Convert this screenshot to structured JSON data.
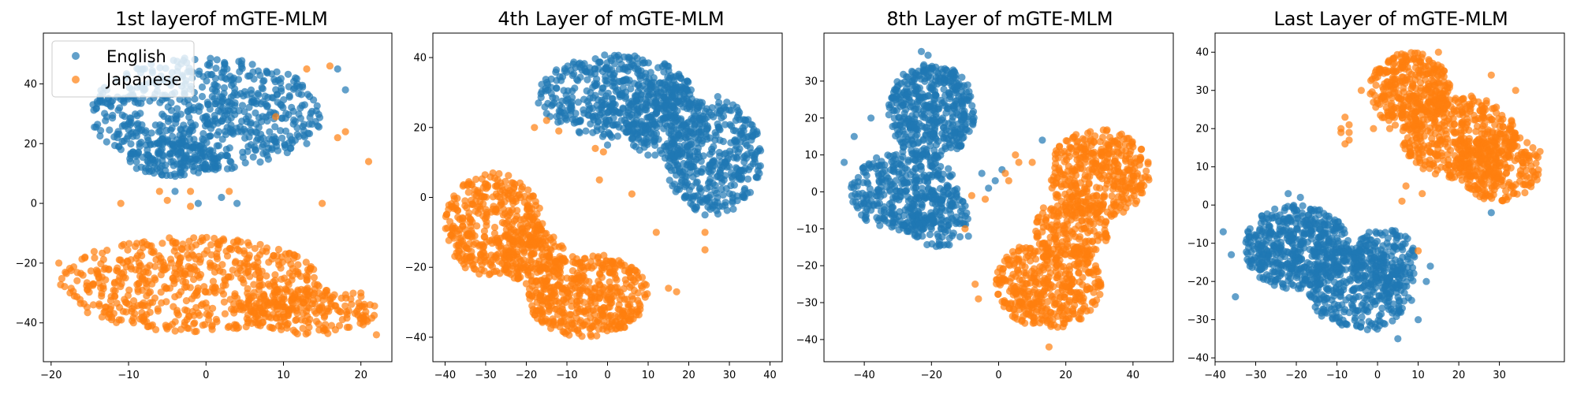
{
  "colors": {
    "English": "#1f77b4",
    "Japanese": "#ff7f0e"
  },
  "chart_data": [
    {
      "type": "scatter",
      "title": "1st layerof mGTE-MLM",
      "xlabel": "",
      "ylabel": "",
      "xlim": [
        -21,
        24
      ],
      "ylim": [
        -53,
        57
      ],
      "xticks": [
        -20,
        -10,
        0,
        10,
        20
      ],
      "yticks": [
        -40,
        -20,
        0,
        20,
        40
      ],
      "legend": {
        "placement": "upper-left",
        "entries": [
          "English",
          "Japanese"
        ]
      },
      "series": [
        {
          "name": "English",
          "clusters": [
            {
              "cx": 0,
              "cy": 30,
              "rx": 15,
              "ry": 19,
              "n": 650
            },
            {
              "cx": -4,
              "cy": 15,
              "rx": 6,
              "ry": 6,
              "n": 120
            }
          ],
          "points": [
            [
              9,
              30
            ],
            [
              17,
              45
            ],
            [
              18,
              38
            ],
            [
              13,
              20
            ],
            [
              -1,
              0
            ],
            [
              2,
              2
            ],
            [
              -4,
              4
            ],
            [
              4,
              0
            ]
          ]
        },
        {
          "name": "Japanese",
          "clusters": [
            {
              "cx": -2,
              "cy": -27,
              "rx": 17,
              "ry": 16,
              "n": 600
            },
            {
              "cx": 13,
              "cy": -36,
              "rx": 9,
              "ry": 8,
              "n": 200
            }
          ],
          "points": [
            [
              3,
              4
            ],
            [
              -6,
              4
            ],
            [
              -2,
              4
            ],
            [
              13,
              45
            ],
            [
              16,
              46
            ],
            [
              18,
              24
            ],
            [
              17,
              22
            ],
            [
              21,
              14
            ],
            [
              9,
              29
            ],
            [
              15,
              0
            ],
            [
              -11,
              0
            ],
            [
              -17,
              -31
            ],
            [
              22,
              -44
            ],
            [
              -19,
              -20
            ],
            [
              20,
              -30
            ],
            [
              -5,
              1
            ],
            [
              -2,
              -1
            ]
          ]
        }
      ]
    },
    {
      "type": "scatter",
      "title": "4th Layer of mGTE-MLM",
      "xlabel": "",
      "ylabel": "",
      "xlim": [
        -43,
        43
      ],
      "ylim": [
        -47,
        47
      ],
      "xticks": [
        -40,
        -30,
        -20,
        -10,
        0,
        10,
        20,
        30,
        40
      ],
      "yticks": [
        -40,
        -20,
        0,
        20,
        40
      ],
      "series": [
        {
          "name": "English",
          "clusters": [
            {
              "cx": 2,
              "cy": 29,
              "rx": 19,
              "ry": 12,
              "n": 450
            },
            {
              "cx": 26,
              "cy": 12,
              "rx": 12,
              "ry": 17,
              "n": 400
            },
            {
              "cx": 14,
              "cy": 22,
              "rx": 10,
              "ry": 11,
              "n": 200
            }
          ],
          "points": [
            [
              -15,
              24
            ],
            [
              -17,
              27
            ],
            [
              0,
              15
            ],
            [
              24,
              -5
            ],
            [
              25,
              0
            ]
          ]
        },
        {
          "name": "Japanese",
          "clusters": [
            {
              "cx": -28,
              "cy": -8,
              "rx": 12,
              "ry": 15,
              "n": 400
            },
            {
              "cx": -5,
              "cy": -28,
              "rx": 15,
              "ry": 12,
              "n": 450
            },
            {
              "cx": -18,
              "cy": -17,
              "rx": 8,
              "ry": 8,
              "n": 150
            }
          ],
          "points": [
            [
              -18,
              20
            ],
            [
              -12,
              19
            ],
            [
              -15,
              22
            ],
            [
              -3,
              14
            ],
            [
              -1,
              13
            ],
            [
              6,
              1
            ],
            [
              24,
              -15
            ],
            [
              24,
              -10
            ],
            [
              12,
              -10
            ],
            [
              -2,
              5
            ],
            [
              17,
              -27
            ],
            [
              15,
              -26
            ]
          ]
        }
      ]
    },
    {
      "type": "scatter",
      "title": "8th Layer of mGTE-MLM",
      "xlabel": "",
      "ylabel": "",
      "xlim": [
        -52,
        52
      ],
      "ylim": [
        -46,
        43
      ],
      "xticks": [
        -40,
        -20,
        0,
        20,
        40
      ],
      "yticks": [
        -40,
        -30,
        -20,
        -10,
        0,
        10,
        20,
        30
      ],
      "series": [
        {
          "name": "English",
          "clusters": [
            {
              "cx": -20,
              "cy": 22,
              "rx": 13,
              "ry": 13,
              "n": 450
            },
            {
              "cx": -28,
              "cy": 0,
              "rx": 16,
              "ry": 11,
              "n": 350
            },
            {
              "cx": -18,
              "cy": -7,
              "rx": 9,
              "ry": 8,
              "n": 120
            }
          ],
          "points": [
            [
              -46,
              8
            ],
            [
              -43,
              15
            ],
            [
              -38,
              20
            ],
            [
              -1,
              3
            ],
            [
              1,
              6
            ],
            [
              -5,
              5
            ],
            [
              -3,
              1
            ],
            [
              13,
              14
            ],
            [
              -23,
              38
            ],
            [
              -21,
              37
            ],
            [
              -9,
              -12
            ]
          ]
        },
        {
          "name": "Japanese",
          "clusters": [
            {
              "cx": 30,
              "cy": 5,
              "rx": 15,
              "ry": 12,
              "n": 380
            },
            {
              "cx": 15,
              "cy": -25,
              "rx": 16,
              "ry": 12,
              "n": 420
            },
            {
              "cx": 22,
              "cy": -10,
              "rx": 11,
              "ry": 10,
              "n": 180
            }
          ],
          "points": [
            [
              5,
              10
            ],
            [
              6,
              8
            ],
            [
              3,
              3
            ],
            [
              -8,
              -1
            ],
            [
              -10,
              -10
            ],
            [
              -7,
              -25
            ],
            [
              -6,
              -29
            ],
            [
              -4,
              -2
            ],
            [
              2,
              5
            ],
            [
              15,
              -42
            ],
            [
              10,
              8
            ]
          ]
        }
      ]
    },
    {
      "type": "scatter",
      "title": "Last Layer of mGTE-MLM",
      "xlabel": "",
      "ylabel": "",
      "xlim": [
        -40,
        46
      ],
      "ylim": [
        -41,
        45
      ],
      "xticks": [
        -40,
        -30,
        -20,
        -10,
        0,
        10,
        20,
        30
      ],
      "yticks": [
        -40,
        -30,
        -20,
        -10,
        0,
        10,
        20,
        30,
        40
      ],
      "series": [
        {
          "name": "English",
          "clusters": [
            {
              "cx": -20,
              "cy": -11,
              "rx": 13,
              "ry": 11,
              "n": 500
            },
            {
              "cx": -4,
              "cy": -22,
              "rx": 13,
              "ry": 11,
              "n": 350
            },
            {
              "cx": 2,
              "cy": -14,
              "rx": 8,
              "ry": 8,
              "n": 150
            }
          ],
          "points": [
            [
              -22,
              3
            ],
            [
              -19,
              2
            ],
            [
              -38,
              -7
            ],
            [
              -36,
              -13
            ],
            [
              -35,
              -24
            ],
            [
              13,
              -16
            ],
            [
              12,
              -20
            ],
            [
              10,
              -30
            ],
            [
              28,
              -2
            ],
            [
              5,
              -35
            ]
          ]
        },
        {
          "name": "Japanese",
          "clusters": [
            {
              "cx": 8,
              "cy": 30,
              "rx": 10,
              "ry": 10,
              "n": 350
            },
            {
              "cx": 20,
              "cy": 18,
              "rx": 14,
              "ry": 11,
              "n": 400
            },
            {
              "cx": 30,
              "cy": 10,
              "rx": 10,
              "ry": 9,
              "n": 250
            }
          ],
          "points": [
            [
              -9,
              20
            ],
            [
              -8,
              23
            ],
            [
              -7,
              21
            ],
            [
              -7,
              17
            ],
            [
              -8,
              16
            ],
            [
              -9,
              19
            ],
            [
              -7,
              19
            ],
            [
              -4,
              30
            ],
            [
              -1,
              20
            ],
            [
              10,
              -12
            ],
            [
              11,
              3
            ],
            [
              7,
              5
            ],
            [
              6,
              1
            ],
            [
              15,
              40
            ],
            [
              28,
              34
            ],
            [
              34,
              30
            ],
            [
              40,
              14
            ],
            [
              3,
              20
            ]
          ]
        }
      ]
    }
  ]
}
